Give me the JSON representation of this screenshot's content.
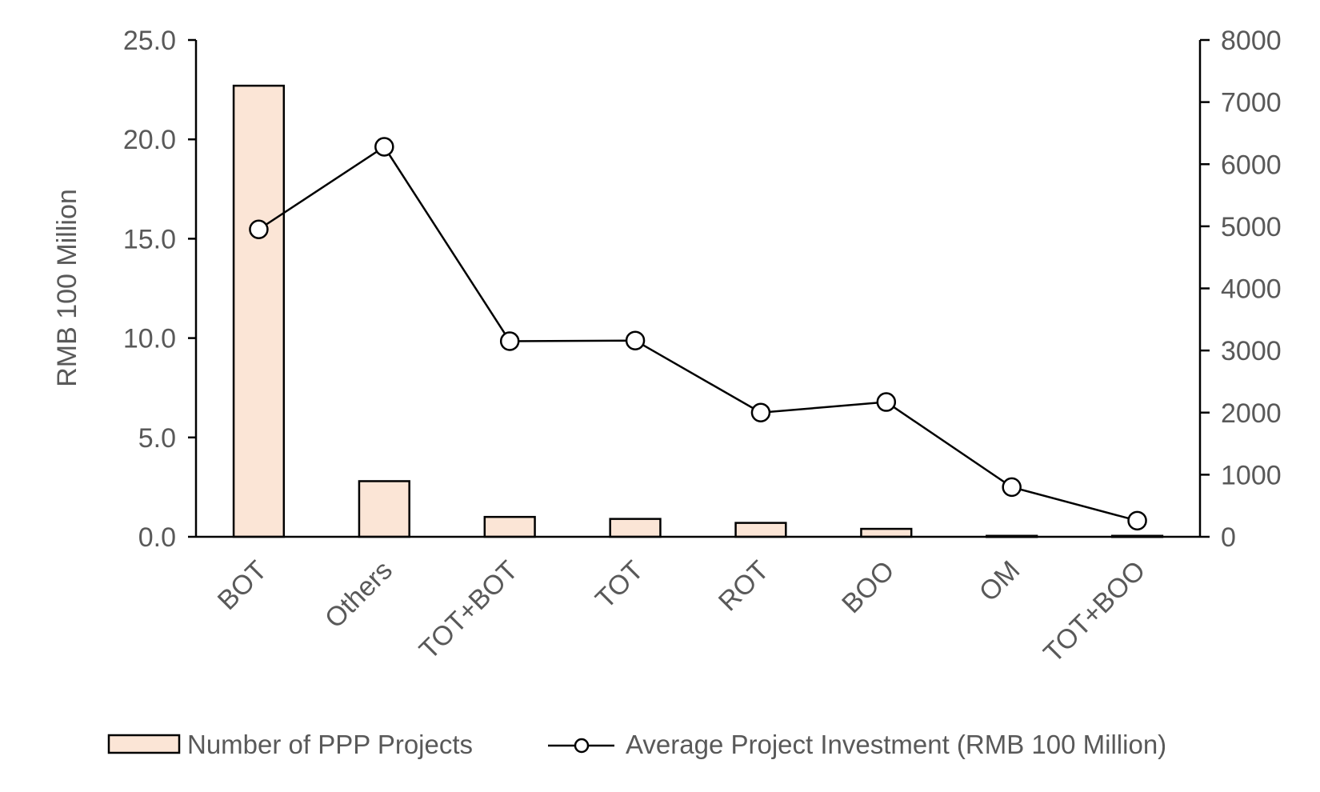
{
  "chart_data": {
    "type": "bar+line",
    "categories": [
      "BOT",
      "Others",
      "TOT+BOT",
      "TOT",
      "ROT",
      "BOO",
      "OM",
      "TOT+BOO"
    ],
    "series": [
      {
        "name": "Number of PPP Projects",
        "type": "bar",
        "axis": "left",
        "values": [
          22.7,
          2.8,
          1.0,
          0.9,
          0.7,
          0.4,
          0.05,
          0.05
        ],
        "fill": "#fbe5d6",
        "stroke": "#000000"
      },
      {
        "name": "Average Project Investment (RMB 100 Million)",
        "type": "line",
        "axis": "right",
        "values": [
          4950,
          6280,
          3150,
          3160,
          2000,
          2170,
          800,
          260
        ],
        "stroke": "#000000",
        "marker": "open-circle"
      }
    ],
    "ylabel": "RMB 100 Million",
    "ylim": [
      0,
      25
    ],
    "yticks": [
      "0.0",
      "5.0",
      "10.0",
      "15.0",
      "20.0",
      "25.0"
    ],
    "y2lim": [
      0,
      8000
    ],
    "y2ticks": [
      "0",
      "1000",
      "2000",
      "3000",
      "4000",
      "5000",
      "6000",
      "7000",
      "8000"
    ],
    "legend_position": "bottom",
    "grid": false
  }
}
